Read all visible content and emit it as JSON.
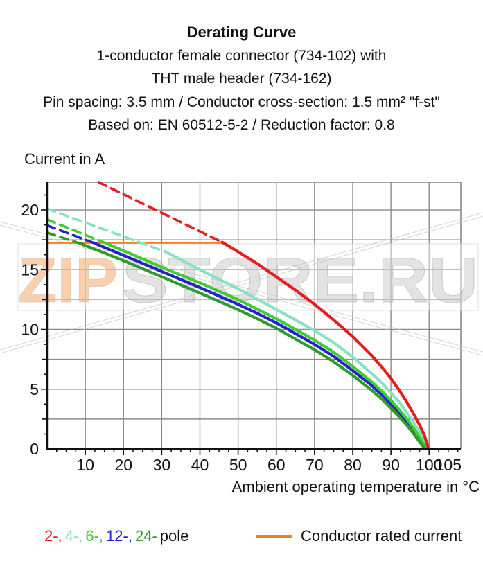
{
  "header": {
    "title": "Derating Curve",
    "lines": [
      "1-conductor female connector (734-102) with",
      "THT male header (734-162)",
      "Pin spacing: 3.5 mm / Conductor cross-section: 1.5 mm² \"f-st\"",
      "Based on: EN 60512-5-2 / Reduction factor: 0.8"
    ]
  },
  "watermark": {
    "zip": "ZIP",
    "store": "STORE.RU",
    "zip_color": "#f2a96b",
    "store_color": "#b9b9b9"
  },
  "y_axis": {
    "ticks": [
      "0",
      "5",
      "10",
      "15",
      "20"
    ],
    "tick_values": [
      0,
      5,
      10,
      15,
      20
    ]
  },
  "x_axis": {
    "ticks": [
      "10",
      "20",
      "30",
      "40",
      "50",
      "60",
      "70",
      "80",
      "90",
      "100",
      "105"
    ],
    "tick_values": [
      10,
      20,
      30,
      40,
      50,
      60,
      70,
      80,
      90,
      100,
      105
    ]
  },
  "legend": {
    "pole_items": [
      {
        "text": "2-,",
        "color": "#e51d1d"
      },
      {
        "text": "4-,",
        "color": "#8ce3c4"
      },
      {
        "text": "6-,",
        "color": "#41cc30"
      },
      {
        "text": "12-,",
        "color": "#2222cf"
      },
      {
        "text": "24-",
        "color": "#2f9b28"
      }
    ],
    "pole_suffix": "pole",
    "rated_label": "Conductor rated current",
    "rated_color": "#f07f1c"
  },
  "chart_data": {
    "type": "line",
    "title": "Derating Curve",
    "xlabel": "Ambient operating temperature in °C",
    "ylabel": "Current in A",
    "xlim": [
      0,
      108.3
    ],
    "ylim": [
      0,
      22.32
    ],
    "x_grid_step": 10,
    "y_grid_step": 2.5,
    "grid": true,
    "rated_current_A": 17.25,
    "rated_line_x_end": 46,
    "series": [
      {
        "name": "2-pole",
        "color": "#e51d1d",
        "dashed": [
          [
            13.5,
            22.32
          ],
          [
            45.8,
            17.3
          ]
        ],
        "solid": [
          [
            45.8,
            17.3
          ],
          [
            50,
            16.5
          ],
          [
            55,
            15.5
          ],
          [
            60,
            14.4
          ],
          [
            65,
            13.3
          ],
          [
            70,
            12.1
          ],
          [
            75,
            10.8
          ],
          [
            80,
            9.4
          ],
          [
            85,
            7.8
          ],
          [
            88,
            6.7
          ],
          [
            90,
            5.9
          ],
          [
            92,
            5.0
          ],
          [
            94,
            4.0
          ],
          [
            96,
            2.9
          ],
          [
            97.5,
            2.0
          ],
          [
            98.8,
            1.1
          ],
          [
            99.6,
            0.3
          ],
          [
            99.8,
            0
          ]
        ]
      },
      {
        "name": "4-pole",
        "color": "#85e2c2",
        "dashed": [
          [
            0,
            20.1
          ],
          [
            31,
            16.5
          ]
        ],
        "solid": [
          [
            31,
            16.5
          ],
          [
            40,
            15.0
          ],
          [
            50,
            13.4
          ],
          [
            57,
            12.2
          ],
          [
            65,
            10.8
          ],
          [
            70,
            9.9
          ],
          [
            75,
            8.9
          ],
          [
            80,
            7.7
          ],
          [
            85,
            6.3
          ],
          [
            88,
            5.4
          ],
          [
            90,
            4.7
          ],
          [
            92,
            4.0
          ],
          [
            94,
            3.1
          ],
          [
            96,
            2.2
          ],
          [
            97.5,
            1.4
          ],
          [
            98.8,
            0.6
          ],
          [
            99.5,
            0
          ]
        ]
      },
      {
        "name": "6-pole",
        "color": "#41cc30",
        "dashed": [
          [
            0,
            19.2
          ],
          [
            15.5,
            17.2
          ]
        ],
        "solid": [
          [
            15.5,
            17.2
          ],
          [
            25,
            15.9
          ],
          [
            30,
            15.2
          ],
          [
            40,
            13.9
          ],
          [
            50,
            12.5
          ],
          [
            55,
            11.7
          ],
          [
            60,
            10.9
          ],
          [
            65,
            10.0
          ],
          [
            70,
            9.1
          ],
          [
            75,
            8.1
          ],
          [
            80,
            6.9
          ],
          [
            85,
            5.6
          ],
          [
            88,
            4.7
          ],
          [
            90,
            4.05
          ],
          [
            92,
            3.35
          ],
          [
            94,
            2.6
          ],
          [
            96,
            1.7
          ],
          [
            97.5,
            1.0
          ],
          [
            98.8,
            0.25
          ],
          [
            99.2,
            0
          ]
        ]
      },
      {
        "name": "12-pole",
        "color": "#2222cf",
        "dashed": [
          [
            0,
            18.7
          ],
          [
            12.5,
            17.2
          ]
        ],
        "solid": [
          [
            12.5,
            17.2
          ],
          [
            20,
            16.2
          ],
          [
            30,
            14.85
          ],
          [
            40,
            13.5
          ],
          [
            50,
            12.1
          ],
          [
            55,
            11.35
          ],
          [
            60,
            10.55
          ],
          [
            65,
            9.65
          ],
          [
            70,
            8.75
          ],
          [
            75,
            7.75
          ],
          [
            80,
            6.55
          ],
          [
            85,
            5.3
          ],
          [
            88,
            4.4
          ],
          [
            90,
            3.75
          ],
          [
            92,
            3.1
          ],
          [
            94,
            2.35
          ],
          [
            96,
            1.5
          ],
          [
            97.5,
            0.85
          ],
          [
            98.8,
            0.15
          ],
          [
            99.1,
            0
          ]
        ]
      },
      {
        "name": "24-pole",
        "color": "#2f9b28",
        "dashed": [
          [
            0,
            18.1
          ],
          [
            8.5,
            17.2
          ]
        ],
        "solid": [
          [
            8.5,
            17.2
          ],
          [
            15,
            16.4
          ],
          [
            20,
            15.75
          ],
          [
            30,
            14.4
          ],
          [
            40,
            13.05
          ],
          [
            50,
            11.65
          ],
          [
            55,
            10.9
          ],
          [
            60,
            10.1
          ],
          [
            65,
            9.2
          ],
          [
            70,
            8.3
          ],
          [
            75,
            7.3
          ],
          [
            80,
            6.15
          ],
          [
            85,
            4.9
          ],
          [
            88,
            4.05
          ],
          [
            90,
            3.4
          ],
          [
            92,
            2.75
          ],
          [
            94,
            2.05
          ],
          [
            96,
            1.25
          ],
          [
            97.5,
            0.6
          ],
          [
            98.8,
            0.05
          ],
          [
            99,
            0
          ]
        ]
      }
    ]
  }
}
